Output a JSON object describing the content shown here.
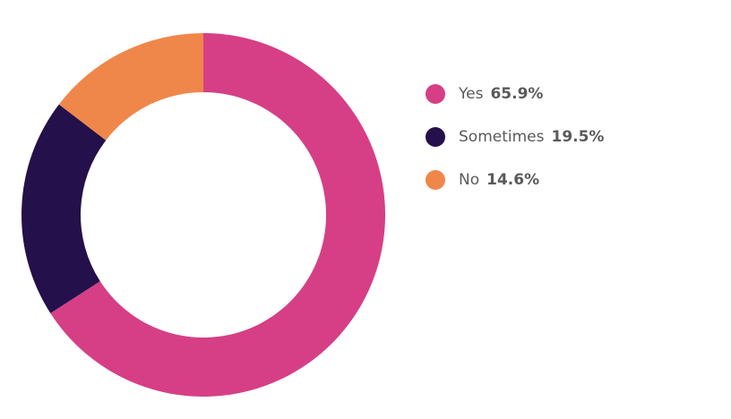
{
  "chart_data": {
    "type": "donut",
    "categories": [
      "Yes",
      "Sometimes",
      "No"
    ],
    "values": [
      65.9,
      19.5,
      14.6
    ],
    "value_labels": [
      "65.9%",
      "19.5%",
      "14.6%"
    ],
    "colors": [
      "#d63f85",
      "#24104a",
      "#f0874a"
    ]
  }
}
